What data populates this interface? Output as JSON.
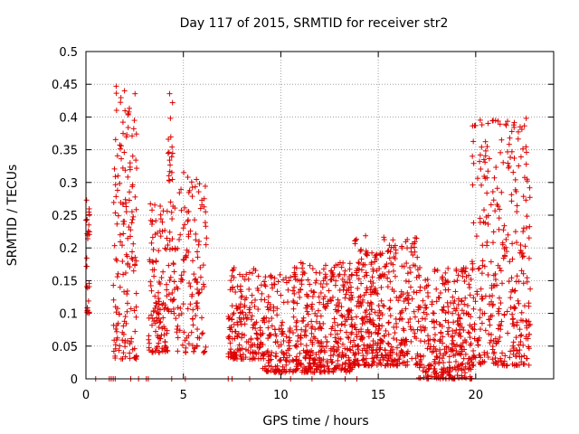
{
  "chart_data": {
    "type": "scatter",
    "title": "Day 117 of 2015, SRMTID for receiver str2",
    "xlabel": "GPS time / hours",
    "ylabel": "SRMTID / TECUs",
    "xlim": [
      0,
      24
    ],
    "ylim": [
      0,
      0.5
    ],
    "xticks": [
      0,
      5,
      10,
      15,
      20
    ],
    "xtick_labels": [
      "0",
      "5",
      "10",
      "15",
      "20"
    ],
    "yticks": [
      0,
      0.05,
      0.1,
      0.15,
      0.2,
      0.25,
      0.3,
      0.35,
      0.4,
      0.45,
      0.5
    ],
    "ytick_labels": [
      "0",
      "0.05",
      "0.1",
      "0.15",
      "0.2",
      "0.25",
      "0.3",
      "0.35",
      "0.4",
      "0.45",
      "0.5"
    ],
    "grid": true,
    "marker": "+",
    "color": "#dd0000",
    "series": [
      {
        "name": "SRMTID",
        "clusters": [
          {
            "x_range": [
              0.0,
              0.2
            ],
            "y_range": [
              0.1,
              0.28
            ],
            "count": 30
          },
          {
            "x_range": [
              1.4,
              2.6
            ],
            "y_range": [
              0.03,
              0.46
            ],
            "count": 160
          },
          {
            "x_range": [
              3.2,
              4.2
            ],
            "y_range": [
              0.04,
              0.27
            ],
            "count": 120
          },
          {
            "x_range": [
              4.2,
              4.6
            ],
            "y_range": [
              0.1,
              0.44
            ],
            "count": 50
          },
          {
            "x_range": [
              4.6,
              6.2
            ],
            "y_range": [
              0.04,
              0.32
            ],
            "count": 130
          },
          {
            "x_range": [
              7.3,
              9.0
            ],
            "y_range": [
              0.03,
              0.17
            ],
            "count": 170
          },
          {
            "x_range": [
              9.0,
              10.5
            ],
            "y_range": [
              0.01,
              0.16
            ],
            "count": 150
          },
          {
            "x_range": [
              10.6,
              13.7
            ],
            "y_range": [
              0.01,
              0.18
            ],
            "count": 400
          },
          {
            "x_range": [
              13.7,
              17.0
            ],
            "y_range": [
              0.02,
              0.22
            ],
            "count": 420
          },
          {
            "x_range": [
              17.0,
              19.8
            ],
            "y_range": [
              0.0,
              0.17
            ],
            "count": 330
          },
          {
            "x_range": [
              19.8,
              22.8
            ],
            "y_range": [
              0.02,
              0.4
            ],
            "count": 360
          }
        ],
        "zero_points": [
          0.5,
          1.2,
          1.3,
          1.4,
          1.5,
          2.3,
          2.7,
          3.1,
          3.2,
          4.4,
          5.1,
          7.3,
          7.5,
          8.4,
          10.5,
          11.6,
          13.3,
          13.9,
          17.5
        ]
      }
    ]
  }
}
